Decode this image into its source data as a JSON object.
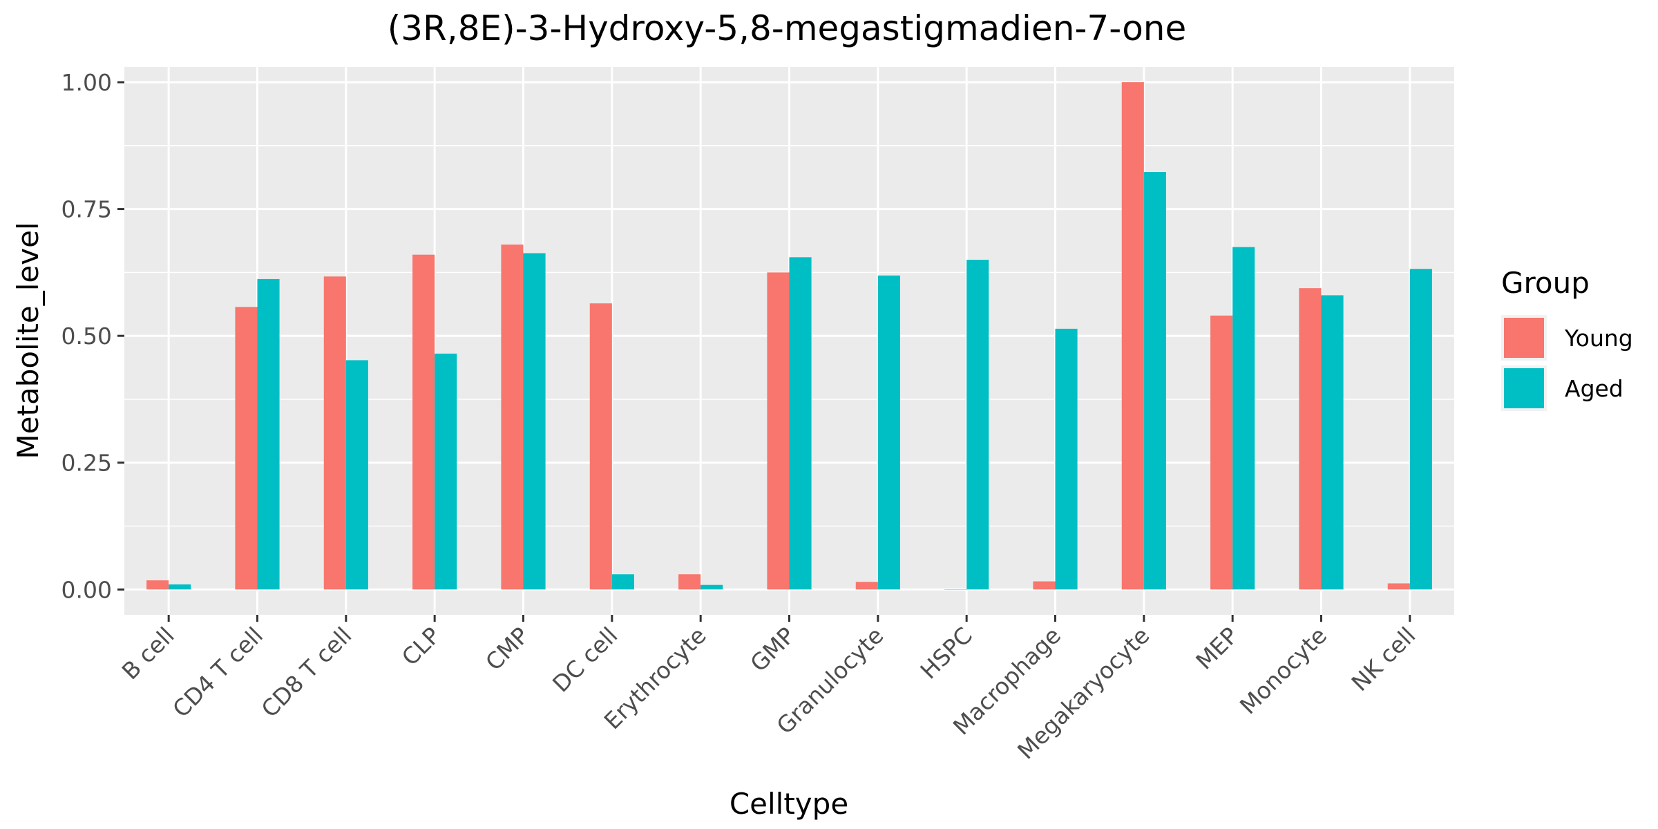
{
  "chart_data": {
    "type": "bar",
    "title": "(3R,8E)-3-Hydroxy-5,8-megastigmadien-7-one",
    "xlabel": "Celltype",
    "ylabel": "Metabolite_level",
    "ylim": [
      -0.05,
      1.03
    ],
    "yticks": [
      0.0,
      0.25,
      0.5,
      0.75,
      1.0
    ],
    "ytick_labels": [
      "0.00",
      "0.25",
      "0.50",
      "0.75",
      "1.00"
    ],
    "grid": true,
    "categories": [
      "B cell",
      "CD4 T cell",
      "CD8 T cell",
      "CLP",
      "CMP",
      "DC cell",
      "Erythrocyte",
      "GMP",
      "Granulocyte",
      "HSPC",
      "Macrophage",
      "Megakaryocyte",
      "MEP",
      "Monocyte",
      "NK cell"
    ],
    "series": [
      {
        "name": "Young",
        "color": "#F8766D",
        "values": [
          0.018,
          0.557,
          0.617,
          0.66,
          0.68,
          0.564,
          0.03,
          0.625,
          0.015,
          0.0,
          0.016,
          1.0,
          0.54,
          0.594,
          0.012
        ]
      },
      {
        "name": "Aged",
        "color": "#00BFC4",
        "values": [
          0.01,
          0.612,
          0.452,
          0.465,
          0.663,
          0.03,
          0.009,
          0.655,
          0.619,
          0.65,
          0.514,
          0.823,
          0.675,
          0.58,
          0.632
        ]
      }
    ],
    "legend": {
      "title": "Group",
      "position": "right"
    }
  }
}
